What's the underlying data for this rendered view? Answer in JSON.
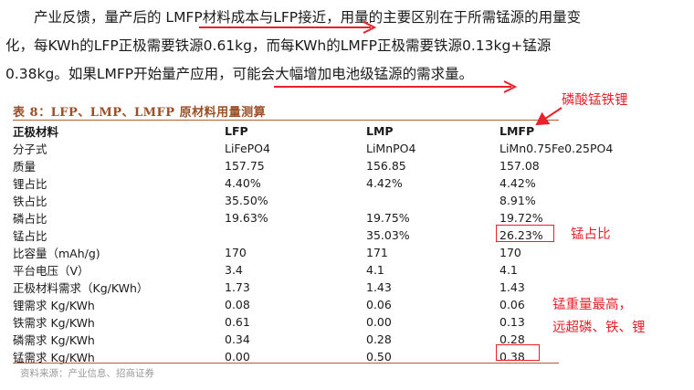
{
  "paragraph": {
    "line1": "产业反馈，量产后的 LMFP材料成本与LFP接近，用量的主要区别在于所需锰源的用量变",
    "line2": "化，每KWh的LFP正极需要铁源0.61kg，而每KWh的LMFP正极需要铁源0.13kg+锰源",
    "line3": "0.38kg。如果LMFP开始量产应用，可能会大幅增加电池级锰源的需求量。"
  },
  "table": {
    "title": "表 8：LFP、LMP、LMFP 原材料用量测算",
    "headers": [
      "正极材料",
      "LFP",
      "LMP",
      "LMFP"
    ],
    "rows": [
      [
        "分子式",
        "LiFePO4",
        "LiMnPO4",
        "LiMn0.75Fe0.25PO4"
      ],
      [
        "质量",
        "157.75",
        "156.85",
        "157.08"
      ],
      [
        "锂占比",
        "4.40%",
        "4.42%",
        "4.42%"
      ],
      [
        "铁占比",
        "35.50%",
        "",
        "8.91%"
      ],
      [
        "磷占比",
        "19.63%",
        "19.75%",
        "19.72%"
      ],
      [
        "锰占比",
        "",
        "35.03%",
        "26.23%"
      ],
      [
        "比容量（mAh/g)",
        "170",
        "171",
        "170"
      ],
      [
        "平台电压（V）",
        "3.4",
        "4.1",
        "4.1"
      ],
      [
        "正极材料需求（Kg/KWh）",
        "1.73",
        "1.43",
        "1.43"
      ],
      [
        "锂需求 Kg/KWh",
        "0.08",
        "0.06",
        "0.06"
      ],
      [
        "铁需求 Kg/KWh",
        "0.61",
        "0.00",
        "0.13"
      ],
      [
        "磷需求 Kg/KWh",
        "0.34",
        "0.28",
        "0.28"
      ],
      [
        "锰需求 Kg/KWh",
        "0.00",
        "0.50",
        "0.38"
      ]
    ],
    "source": "资料来源：产业信息、招商证券"
  },
  "annotations": {
    "lmfp_note": "磷酸锰铁锂",
    "mn_ratio_note": "锰占比",
    "mn_demand_note_1": "锰重量最高，",
    "mn_demand_note_2": "远超磷、铁、锂",
    "color": "#e8212a"
  }
}
